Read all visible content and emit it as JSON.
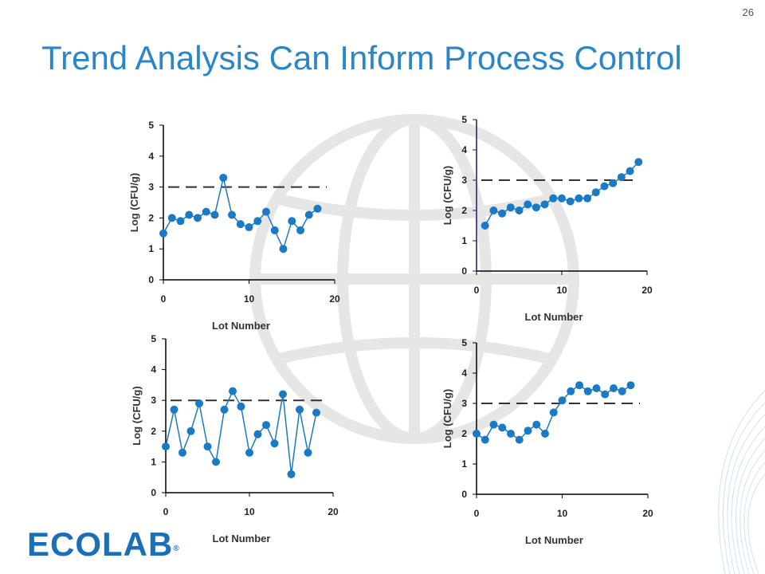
{
  "page_number": "26",
  "title": "Trend Analysis Can Inform Process Control",
  "logo_text": "ECOLAB",
  "logo_mark": "®",
  "colors": {
    "title": "#2a86c8",
    "marker": "#1a7ac6",
    "axis": "#000000",
    "axis_alt": "#1a1a6e",
    "threshold": "#333333",
    "watermark": "#e6e6e6",
    "logo": "#1a6fb6"
  },
  "chart_data": [
    {
      "type": "line",
      "xlabel": "Lot Number",
      "ylabel": "Log (CFU/g)",
      "xlim": [
        0,
        20
      ],
      "ylim": [
        0,
        5
      ],
      "xticks": [
        "0",
        "10",
        "20"
      ],
      "yticks": [
        "0",
        "1",
        "2",
        "3",
        "4",
        "5"
      ],
      "threshold": 3,
      "x": [
        0,
        1,
        2,
        3,
        4,
        5,
        6,
        7,
        8,
        9,
        10,
        11,
        12,
        13,
        14,
        15,
        16,
        17,
        18
      ],
      "y": [
        1.5,
        2.0,
        1.9,
        2.1,
        2.0,
        2.2,
        2.1,
        3.3,
        2.1,
        1.8,
        1.7,
        1.9,
        2.2,
        1.6,
        1.0,
        1.9,
        1.6,
        2.1,
        2.3
      ]
    },
    {
      "type": "line",
      "xlabel": "Lot Number",
      "ylabel": "Log (CFU/g)",
      "xlim": [
        0,
        20
      ],
      "ylim": [
        0,
        5
      ],
      "xticks": [
        "0",
        "10",
        "20"
      ],
      "yticks": [
        "0",
        "1",
        "2",
        "3",
        "4",
        "5"
      ],
      "threshold": 3,
      "x": [
        1,
        2,
        3,
        4,
        5,
        6,
        7,
        8,
        9,
        10,
        11,
        12,
        13,
        14,
        15,
        16,
        17,
        18,
        19
      ],
      "y": [
        1.5,
        2.0,
        1.9,
        2.1,
        2.0,
        2.2,
        2.1,
        2.2,
        2.4,
        2.4,
        2.3,
        2.4,
        2.4,
        2.6,
        2.8,
        2.9,
        3.1,
        3.3,
        3.6
      ]
    },
    {
      "type": "line",
      "xlabel": "Lot Number",
      "ylabel": "Log (CFU/g)",
      "xlim": [
        0,
        20
      ],
      "ylim": [
        0,
        5
      ],
      "xticks": [
        "0",
        "10",
        "20"
      ],
      "yticks": [
        "0",
        "1",
        "2",
        "3",
        "4",
        "5"
      ],
      "threshold": 3,
      "x": [
        0,
        1,
        2,
        3,
        4,
        5,
        6,
        7,
        8,
        9,
        10,
        11,
        12,
        13,
        14,
        15,
        16,
        17,
        18
      ],
      "y": [
        1.5,
        2.7,
        1.3,
        2.0,
        2.9,
        1.5,
        1.0,
        2.7,
        3.3,
        2.8,
        1.3,
        1.9,
        2.2,
        1.6,
        3.2,
        0.6,
        2.7,
        1.3,
        2.6
      ]
    },
    {
      "type": "line",
      "xlabel": "Lot Number",
      "ylabel": "Log (CFU/g)",
      "xlim": [
        0,
        20
      ],
      "ylim": [
        0,
        5
      ],
      "xticks": [
        "0",
        "10",
        "20"
      ],
      "yticks": [
        "0",
        "1",
        "2",
        "3",
        "4",
        "5"
      ],
      "threshold": 3,
      "x": [
        0,
        1,
        2,
        3,
        4,
        5,
        6,
        7,
        8,
        9,
        10,
        11,
        12,
        13,
        14,
        15,
        16,
        17,
        18
      ],
      "y": [
        2.0,
        1.8,
        2.3,
        2.2,
        2.0,
        1.8,
        2.1,
        2.3,
        2.0,
        2.7,
        3.1,
        3.4,
        3.6,
        3.4,
        3.5,
        3.3,
        3.5,
        3.4,
        3.6
      ]
    }
  ]
}
